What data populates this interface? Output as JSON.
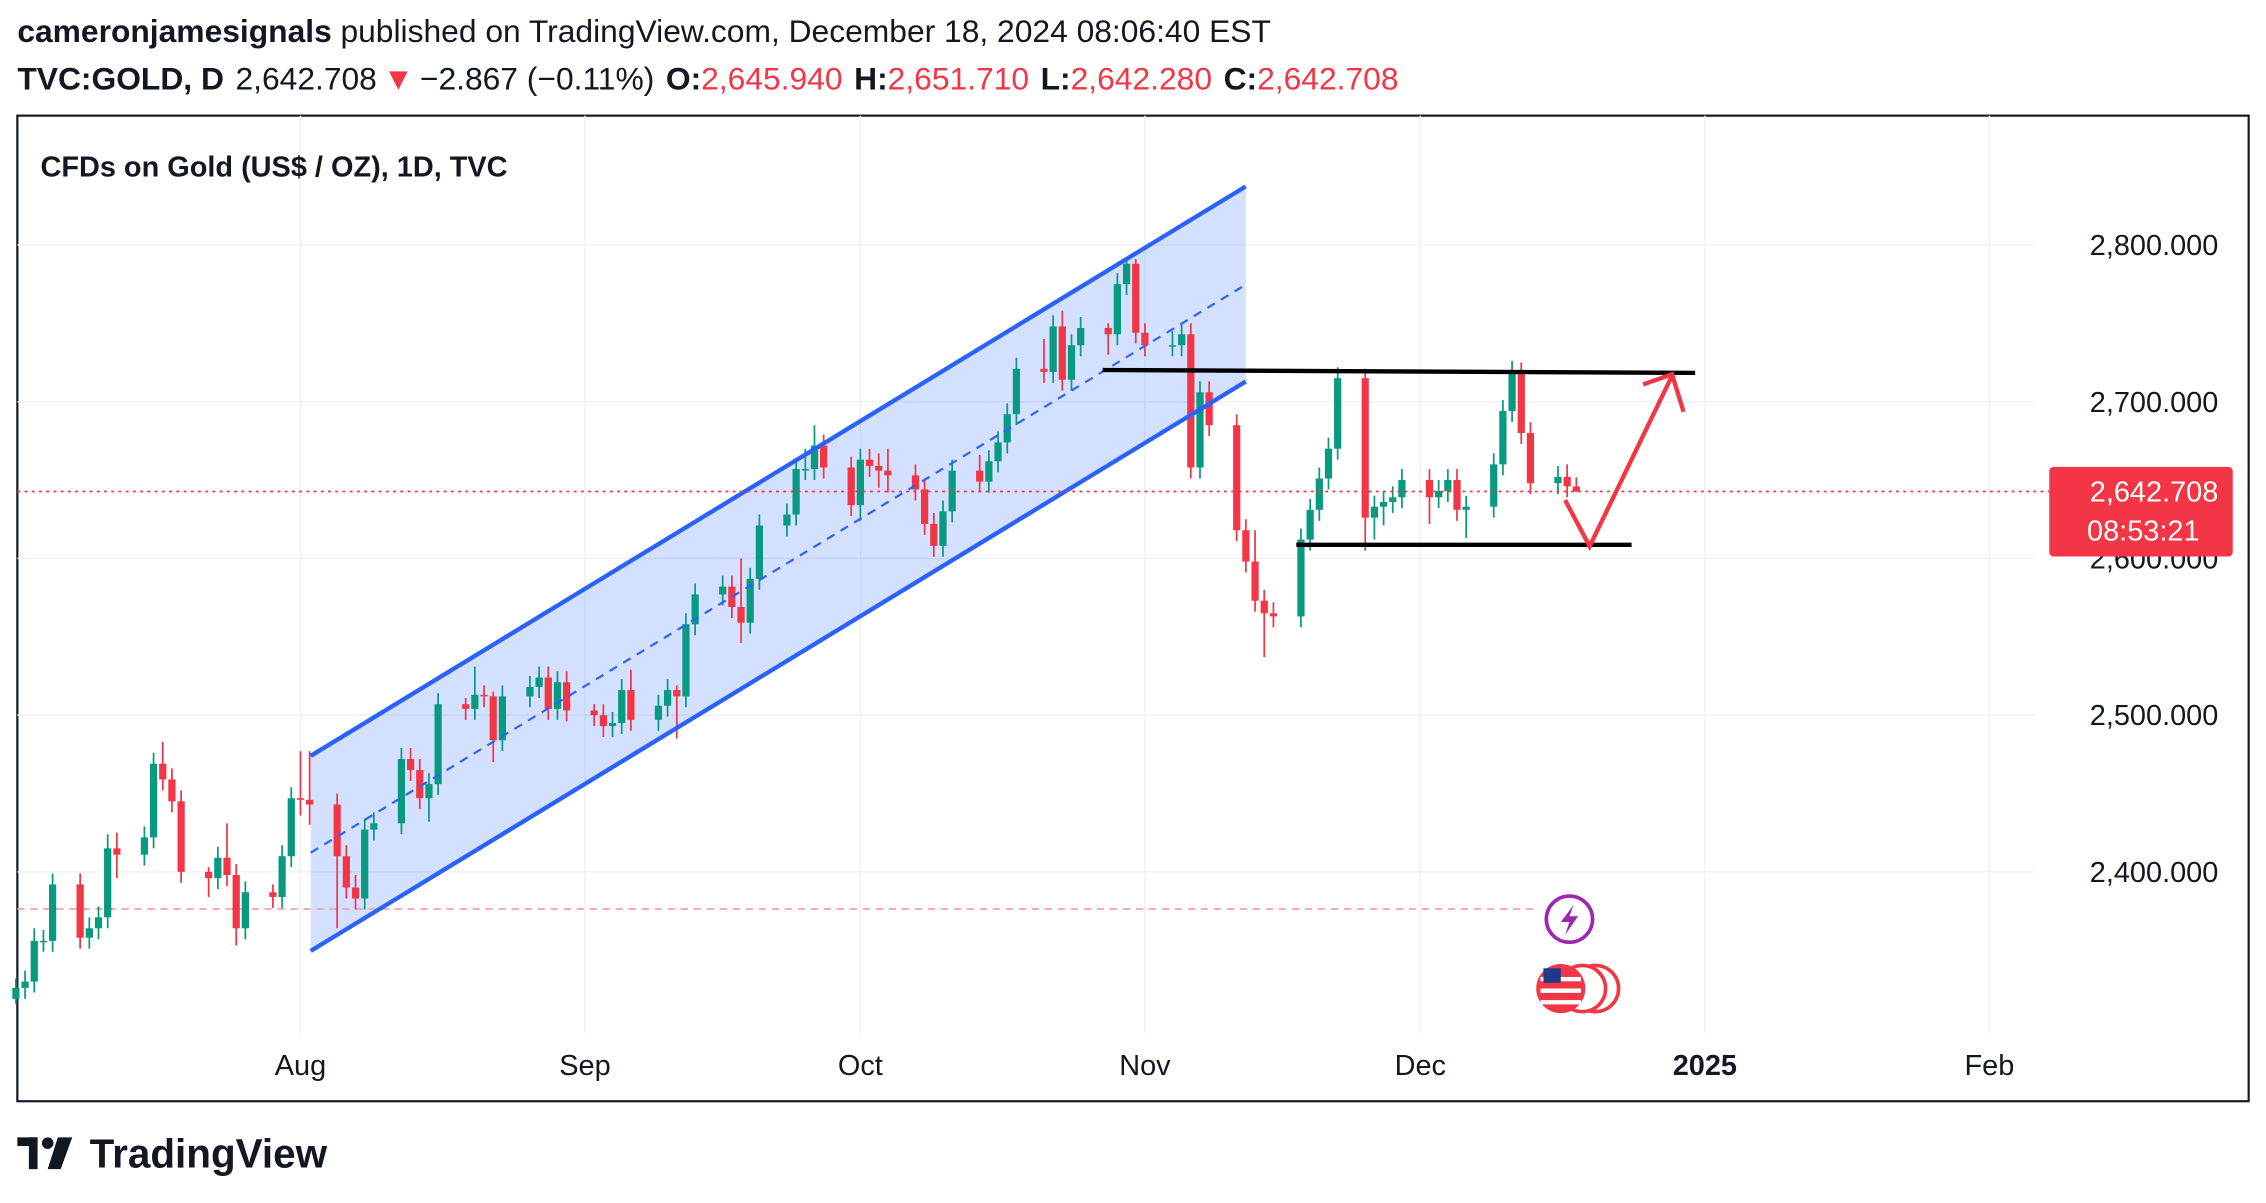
{
  "header": {
    "author": "cameronjamesignals",
    "published": "published on TradingView.com, December 18, 2024 08:06:40 EST",
    "symbol": "TVC:GOLD, D",
    "last": "2,642.708",
    "arrow": "▼",
    "change": "−2.867 (−0.11%)",
    "ohlc": [
      {
        "label": "O:",
        "value": "2,645.940"
      },
      {
        "label": "H:",
        "value": "2,651.710"
      },
      {
        "label": "L:",
        "value": "2,642.280"
      },
      {
        "label": "C:",
        "value": "2,642.708"
      }
    ]
  },
  "chart_data": {
    "type": "candlestick",
    "title": "CFDs on Gold (US$ / OZ), 1D, TVC",
    "x": [
      0,
      1,
      2,
      3,
      4,
      7,
      8,
      9,
      10,
      11,
      14,
      15,
      16,
      17,
      18,
      21,
      22,
      23,
      24,
      25,
      28,
      29,
      30,
      31,
      32,
      35,
      36,
      37,
      38,
      39,
      42,
      43,
      44,
      45,
      46,
      49,
      50,
      51,
      52,
      53,
      56,
      57,
      58,
      59,
      60,
      63,
      64,
      65,
      66,
      67,
      70,
      71,
      72,
      73,
      74,
      77,
      78,
      79,
      80,
      81,
      84,
      85,
      86,
      87,
      88,
      91,
      92,
      93,
      94,
      95,
      98,
      99,
      100,
      101,
      102,
      105,
      106,
      107,
      108,
      109,
      112,
      113,
      114,
      115,
      116,
      119,
      120,
      121,
      122,
      123,
      126,
      127,
      128,
      129,
      130,
      133,
      134,
      135,
      136,
      137,
      140,
      141,
      142,
      143,
      144,
      147,
      148,
      149,
      150,
      151,
      154,
      155,
      156,
      157,
      158,
      161,
      162,
      163,
      164,
      165,
      168,
      169,
      170
    ],
    "open": [
      2319,
      2326,
      2330,
      2356,
      2356,
      2392,
      2358,
      2364,
      2371,
      2415,
      2411,
      2422,
      2469,
      2459,
      2445,
      2400,
      2396,
      2409,
      2398,
      2364,
      2387,
      2384,
      2410,
      2447,
      2446,
      2443,
      2410,
      2390,
      2383,
      2427,
      2431,
      2472,
      2465,
      2447,
      2456,
      2507,
      2504,
      2513,
      2512,
      2484,
      2512,
      2518,
      2524,
      2504,
      2521,
      2503,
      2500,
      2493,
      2495,
      2516,
      2497,
      2506,
      2516,
      2512,
      2558,
      2577,
      2582,
      2569,
      2559,
      2587,
      2621,
      2628,
      2657,
      2657,
      2672,
      2658,
      2634,
      2663,
      2659,
      2656,
      2653,
      2644,
      2622,
      2608,
      2630,
      2656,
      2649,
      2662,
      2674,
      2692,
      2721,
      2719,
      2748,
      2714,
      2736,
      2747,
      2743,
      2775,
      2788,
      2744,
      2736,
      2736,
      2743,
      2658,
      2706,
      2685,
      2618,
      2598,
      2573,
      2565,
      2563,
      2612,
      2631,
      2651,
      2670,
      2715,
      2626,
      2633,
      2636,
      2639,
      2650,
      2639,
      2643,
      2650,
      2631,
      2633,
      2660,
      2694,
      2718,
      2680,
      2648,
      2652,
      2645.94
    ],
    "high": [
      2332,
      2337,
      2364,
      2363,
      2399,
      2399,
      2371,
      2378,
      2424,
      2425,
      2429,
      2476,
      2483,
      2466,
      2452,
      2403,
      2416,
      2431,
      2405,
      2394,
      2392,
      2417,
      2454,
      2477,
      2477,
      2450,
      2417,
      2398,
      2434,
      2438,
      2479,
      2479,
      2472,
      2463,
      2514,
      2511,
      2531,
      2519,
      2515,
      2519,
      2525,
      2531,
      2531,
      2528,
      2528,
      2507,
      2507,
      2502,
      2523,
      2529,
      2513,
      2523,
      2519,
      2565,
      2584,
      2589,
      2589,
      2600,
      2594,
      2628,
      2635,
      2664,
      2670,
      2685,
      2679,
      2665,
      2670,
      2670,
      2667,
      2670,
      2660,
      2651,
      2629,
      2637,
      2663,
      2666,
      2669,
      2681,
      2699,
      2728,
      2740,
      2755,
      2758,
      2743,
      2754,
      2750,
      2782,
      2790,
      2791,
      2750,
      2745,
      2750,
      2750,
      2713,
      2713,
      2692,
      2625,
      2618,
      2580,
      2572,
      2619,
      2638,
      2658,
      2677,
      2722,
      2721,
      2640,
      2643,
      2646,
      2657,
      2657,
      2650,
      2657,
      2657,
      2640,
      2667,
      2701,
      2726,
      2725,
      2687,
      2659,
      2660,
      2651.71
    ],
    "low": [
      2316,
      2319,
      2323,
      2349,
      2349,
      2351,
      2351,
      2357,
      2364,
      2396,
      2404,
      2415,
      2452,
      2438,
      2393,
      2384,
      2389,
      2391,
      2353,
      2357,
      2377,
      2377,
      2403,
      2436,
      2430,
      2364,
      2383,
      2376,
      2376,
      2420,
      2424,
      2458,
      2440,
      2432,
      2449,
      2497,
      2497,
      2505,
      2470,
      2477,
      2505,
      2511,
      2497,
      2497,
      2496,
      2493,
      2486,
      2486,
      2488,
      2490,
      2490,
      2499,
      2485,
      2505,
      2551,
      2570,
      2562,
      2546,
      2552,
      2580,
      2614,
      2621,
      2650,
      2650,
      2651,
      2627,
      2624,
      2652,
      2645,
      2642,
      2637,
      2615,
      2601,
      2601,
      2623,
      2642,
      2642,
      2655,
      2667,
      2685,
      2712,
      2712,
      2707,
      2707,
      2729,
      2730,
      2736,
      2768,
      2737,
      2729,
      2729,
      2729,
      2651,
      2651,
      2678,
      2611,
      2591,
      2566,
      2537,
      2556,
      2556,
      2605,
      2624,
      2644,
      2663,
      2605,
      2612,
      2621,
      2629,
      2632,
      2622,
      2632,
      2636,
      2624,
      2613,
      2626,
      2653,
      2687,
      2673,
      2641,
      2641,
      2639,
      2642.28
    ],
    "close": [
      2326,
      2330,
      2356,
      2356,
      2392,
      2358,
      2364,
      2371,
      2415,
      2411,
      2422,
      2469,
      2459,
      2445,
      2400,
      2396,
      2409,
      2398,
      2364,
      2387,
      2384,
      2410,
      2447,
      2446,
      2443,
      2410,
      2390,
      2383,
      2427,
      2431,
      2472,
      2465,
      2447,
      2456,
      2507,
      2504,
      2513,
      2512,
      2484,
      2512,
      2518,
      2524,
      2504,
      2521,
      2503,
      2500,
      2493,
      2495,
      2516,
      2497,
      2506,
      2516,
      2512,
      2558,
      2577,
      2582,
      2569,
      2559,
      2587,
      2621,
      2628,
      2657,
      2657,
      2672,
      2658,
      2634,
      2663,
      2659,
      2656,
      2653,
      2644,
      2622,
      2608,
      2630,
      2656,
      2649,
      2662,
      2674,
      2692,
      2721,
      2719,
      2748,
      2714,
      2736,
      2747,
      2743,
      2775,
      2788,
      2744,
      2736,
      2736,
      2743,
      2658,
      2706,
      2685,
      2618,
      2598,
      2573,
      2565,
      2563,
      2612,
      2631,
      2651,
      2670,
      2715,
      2626,
      2633,
      2636,
      2639,
      2650,
      2639,
      2643,
      2650,
      2631,
      2633,
      2660,
      2694,
      2718,
      2680,
      2648,
      2652,
      2646,
      2642.708
    ],
    "colors": {
      "up": "#089981",
      "down": "#f23645"
    },
    "xlim": [
      0,
      219
    ],
    "ylim": [
      2297,
      2882.5
    ],
    "xticks": [
      {
        "value": 31,
        "label": "Aug"
      },
      {
        "value": 62,
        "label": "Sep"
      },
      {
        "value": 92,
        "label": "Oct"
      },
      {
        "value": 123,
        "label": "Nov"
      },
      {
        "value": 153,
        "label": "Dec"
      },
      {
        "value": 184,
        "label": "2025"
      },
      {
        "value": 215,
        "label": "Feb"
      }
    ],
    "yticks": [
      {
        "value": 2400,
        "label": "2,400.000"
      },
      {
        "value": 2500,
        "label": "2,500.000"
      },
      {
        "value": 2600,
        "label": "2,600.000"
      },
      {
        "value": 2700,
        "label": "2,700.000"
      },
      {
        "value": 2800,
        "label": "2,800.000"
      }
    ],
    "grid": true,
    "last_price": {
      "value": 2642.708,
      "label": "2,642.708"
    },
    "countdown": "08:53:21"
  },
  "footer": {
    "brand": "TradingView"
  }
}
